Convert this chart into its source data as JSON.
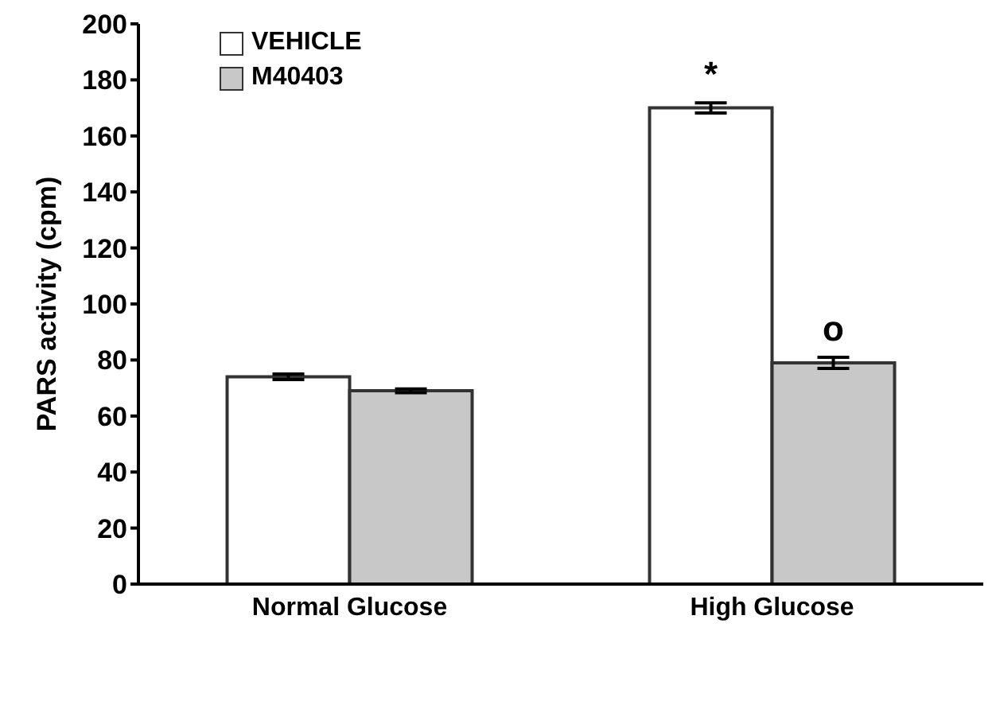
{
  "chart_data": {
    "type": "bar",
    "ylabel": "PARS activity (cpm)",
    "categories": [
      "Normal Glucose",
      "High Glucose"
    ],
    "series": [
      {
        "name": "VEHICLE",
        "color": "#ffffff",
        "values": [
          74,
          170
        ],
        "errors": [
          1,
          1.8
        ]
      },
      {
        "name": "M40403",
        "color": "#c8c8c8",
        "values": [
          69,
          79
        ],
        "errors": [
          0.7,
          2
        ]
      }
    ],
    "ylim": [
      0,
      200
    ],
    "yticks": [
      0,
      20,
      40,
      60,
      80,
      100,
      120,
      140,
      160,
      180,
      200
    ],
    "grid": false,
    "legend": "top left",
    "annotations": [
      {
        "text": "*",
        "x": "High Glucose",
        "y": 170
      },
      {
        "text": "o",
        "x": "High Glucose",
        "y": 79
      }
    ]
  }
}
